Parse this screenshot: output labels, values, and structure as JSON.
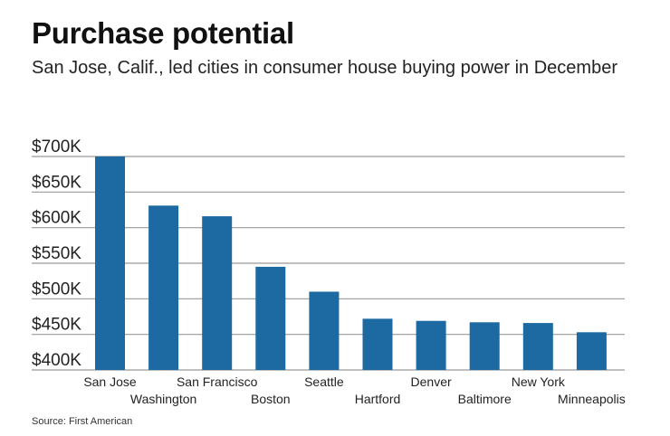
{
  "title": "Purchase potential",
  "subtitle": "San Jose, Calif., led cities in consumer house buying power in December",
  "source": "Source: First American",
  "chart_data": {
    "type": "bar",
    "categories": [
      "San Jose",
      "Washington",
      "San Francisco",
      "Boston",
      "Seattle",
      "Hartford",
      "Denver",
      "Baltimore",
      "New York",
      "Minneapolis"
    ],
    "values": [
      700000,
      631000,
      616000,
      545000,
      510000,
      472000,
      469000,
      467000,
      466000,
      453000
    ],
    "ylim": [
      400000,
      700000
    ],
    "yticks": [
      400000,
      450000,
      500000,
      550000,
      600000,
      650000,
      700000
    ],
    "ytick_labels": [
      "$400K",
      "$450K",
      "$500K",
      "$550K",
      "$600K",
      "$650K",
      "$700K"
    ],
    "grid": true,
    "bar_color": "#1d6aa2",
    "grid_color": "#999999"
  }
}
